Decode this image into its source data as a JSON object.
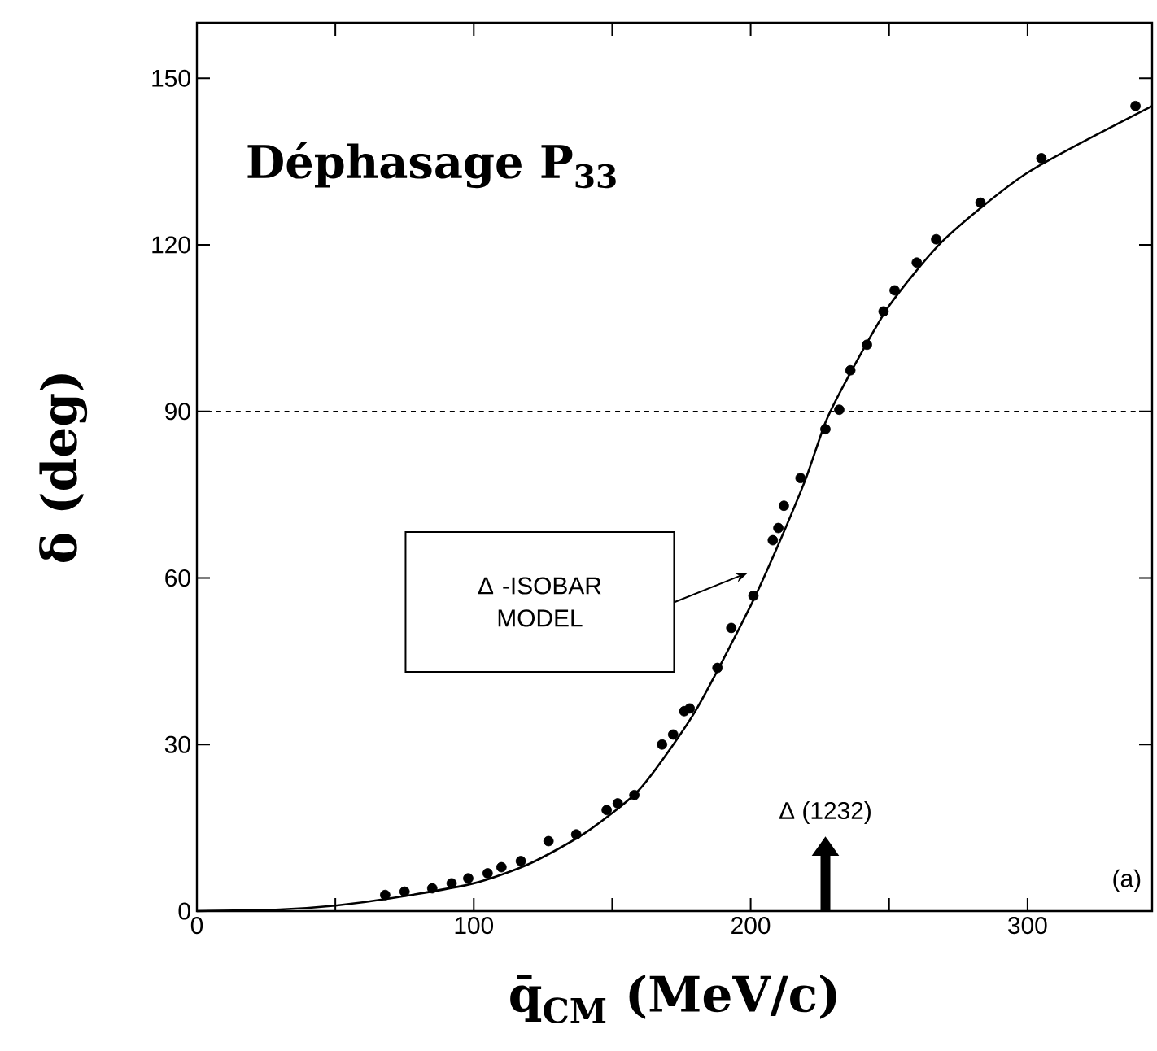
{
  "chart_data": {
    "type": "scatter",
    "title": "Déphasage P$_{33}$",
    "xlabel": "q̄$_{CM}$ (MeV/c)",
    "ylabel": "δ (deg)",
    "xlim": [
      0,
      345
    ],
    "ylim": [
      0,
      160
    ],
    "xticks": [
      0,
      {
        "value": 50,
        "label": null
      },
      100,
      {
        "value": 150,
        "label": null
      },
      200,
      {
        "value": 250,
        "label": null
      },
      300
    ],
    "yticks": [
      0,
      30,
      60,
      90,
      120,
      150
    ],
    "series": [
      {
        "color": "#000000",
        "x": [
          68,
          75,
          85,
          92,
          98,
          105,
          110,
          117,
          127,
          137,
          148,
          152,
          158,
          168,
          172,
          176,
          178,
          188,
          193,
          201,
          208,
          210,
          212,
          218,
          227,
          232,
          236,
          242,
          248,
          252,
          260,
          267,
          283,
          305,
          339
        ],
        "values": [
          2.9,
          3.5,
          4.1,
          5,
          5.9,
          6.8,
          7.9,
          9,
          12.6,
          13.8,
          18.2,
          19.4,
          20.9,
          30,
          31.8,
          36,
          36.5,
          43.8,
          51,
          56.8,
          66.8,
          69,
          73,
          78,
          86.8,
          90.3,
          97.4,
          102,
          108,
          111.8,
          116.8,
          121,
          127.6,
          135.6,
          145
        ]
      },
      {
        "type": "line",
        "marker": "none",
        "line_style": "solid",
        "color": "#000000",
        "x": [
          0,
          30,
          50,
          70,
          100,
          120,
          140,
          160,
          180,
          200,
          210,
          220,
          227,
          235,
          250,
          270,
          300,
          345
        ],
        "values": [
          0,
          0.3,
          1,
          2.3,
          5,
          8.5,
          14,
          22,
          36,
          55,
          66,
          78,
          88,
          96,
          109,
          121,
          133,
          145
        ]
      }
    ],
    "ref_lines": [
      {
        "axis": "y",
        "value": 90,
        "line_style": "dashed",
        "color": "#000000"
      }
    ],
    "annotations": [
      "Δ -ISOBAR MODEL",
      "Δ (1232)",
      "(a)"
    ]
  }
}
